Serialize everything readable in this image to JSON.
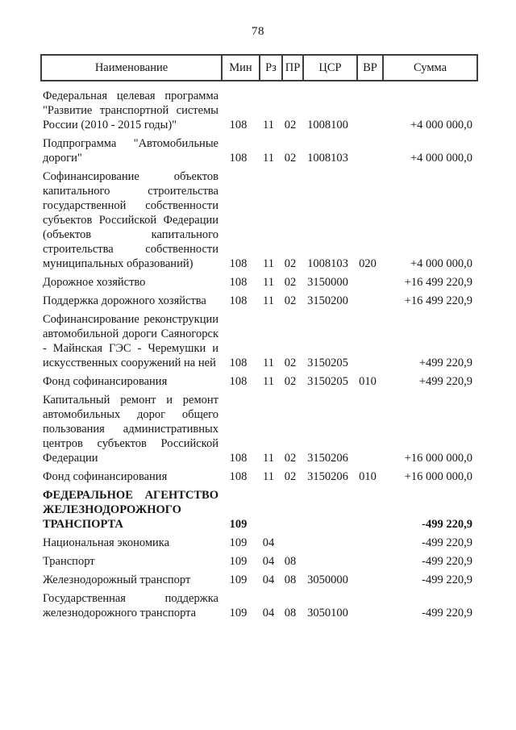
{
  "page": {
    "number": "78"
  },
  "colors": {
    "page_background": "#ffffff",
    "text": "#161616",
    "table_border": "#3c3c3c"
  },
  "table": {
    "columns": [
      "Наименование",
      "Мин",
      "Рз",
      "ПР",
      "ЦСР",
      "ВР",
      "Сумма"
    ],
    "rows": [
      {
        "name": "Федеральная целевая программа \"Развитие транспортной системы России (2010 - 2015 годы)\"",
        "min": "108",
        "rz": "11",
        "pr": "02",
        "csr": "1008100",
        "vr": "",
        "sum": "+4 000 000,0",
        "bold": false
      },
      {
        "name": "Подпрограмма \"Автомобильные дороги\"",
        "min": "108",
        "rz": "11",
        "pr": "02",
        "csr": "1008103",
        "vr": "",
        "sum": "+4 000 000,0",
        "bold": false
      },
      {
        "name": "Софинансирование объектов капитального строительства государственной собственности субъектов Российской Федерации (объектов капитального строительства собственности муниципальных образований)",
        "min": "108",
        "rz": "11",
        "pr": "02",
        "csr": "1008103",
        "vr": "020",
        "sum": "+4 000 000,0",
        "bold": false
      },
      {
        "name": "Дорожное хозяйство",
        "min": "108",
        "rz": "11",
        "pr": "02",
        "csr": "3150000",
        "vr": "",
        "sum": "+16 499 220,9",
        "bold": false
      },
      {
        "name": "Поддержка дорожного хозяйства",
        "min": "108",
        "rz": "11",
        "pr": "02",
        "csr": "3150200",
        "vr": "",
        "sum": "+16 499 220,9",
        "bold": false
      },
      {
        "name": "Софинансирование реконструкции автомобильной дороги Саяногорск - Майнская ГЭС - Черемушки и искусственных сооружений на ней",
        "min": "108",
        "rz": "11",
        "pr": "02",
        "csr": "3150205",
        "vr": "",
        "sum": "+499 220,9",
        "bold": false
      },
      {
        "name": "Фонд софинансирования",
        "min": "108",
        "rz": "11",
        "pr": "02",
        "csr": "3150205",
        "vr": "010",
        "sum": "+499 220,9",
        "bold": false
      },
      {
        "name": "Капитальный ремонт и ремонт автомобильных дорог общего пользования административных центров субъектов Российской Федерации",
        "min": "108",
        "rz": "11",
        "pr": "02",
        "csr": "3150206",
        "vr": "",
        "sum": "+16 000 000,0",
        "bold": false
      },
      {
        "name": "Фонд софинансирования",
        "min": "108",
        "rz": "11",
        "pr": "02",
        "csr": "3150206",
        "vr": "010",
        "sum": "+16 000 000,0",
        "bold": false
      },
      {
        "name": "ФЕДЕРАЛЬНОЕ АГЕНТСТВО ЖЕЛЕЗНОДОРОЖНОГО ТРАНСПОРТА",
        "min": "109",
        "rz": "",
        "pr": "",
        "csr": "",
        "vr": "",
        "sum": "-499 220,9",
        "bold": true
      },
      {
        "name": "Национальная экономика",
        "min": "109",
        "rz": "04",
        "pr": "",
        "csr": "",
        "vr": "",
        "sum": "-499 220,9",
        "bold": false
      },
      {
        "name": "Транспорт",
        "min": "109",
        "rz": "04",
        "pr": "08",
        "csr": "",
        "vr": "",
        "sum": "-499 220,9",
        "bold": false
      },
      {
        "name": "Железнодорожный транспорт",
        "min": "109",
        "rz": "04",
        "pr": "08",
        "csr": "3050000",
        "vr": "",
        "sum": "-499 220,9",
        "bold": false
      },
      {
        "name": "Государственная поддержка железнодорожного транспорта",
        "min": "109",
        "rz": "04",
        "pr": "08",
        "csr": "3050100",
        "vr": "",
        "sum": "-499 220,9",
        "bold": false
      }
    ]
  }
}
